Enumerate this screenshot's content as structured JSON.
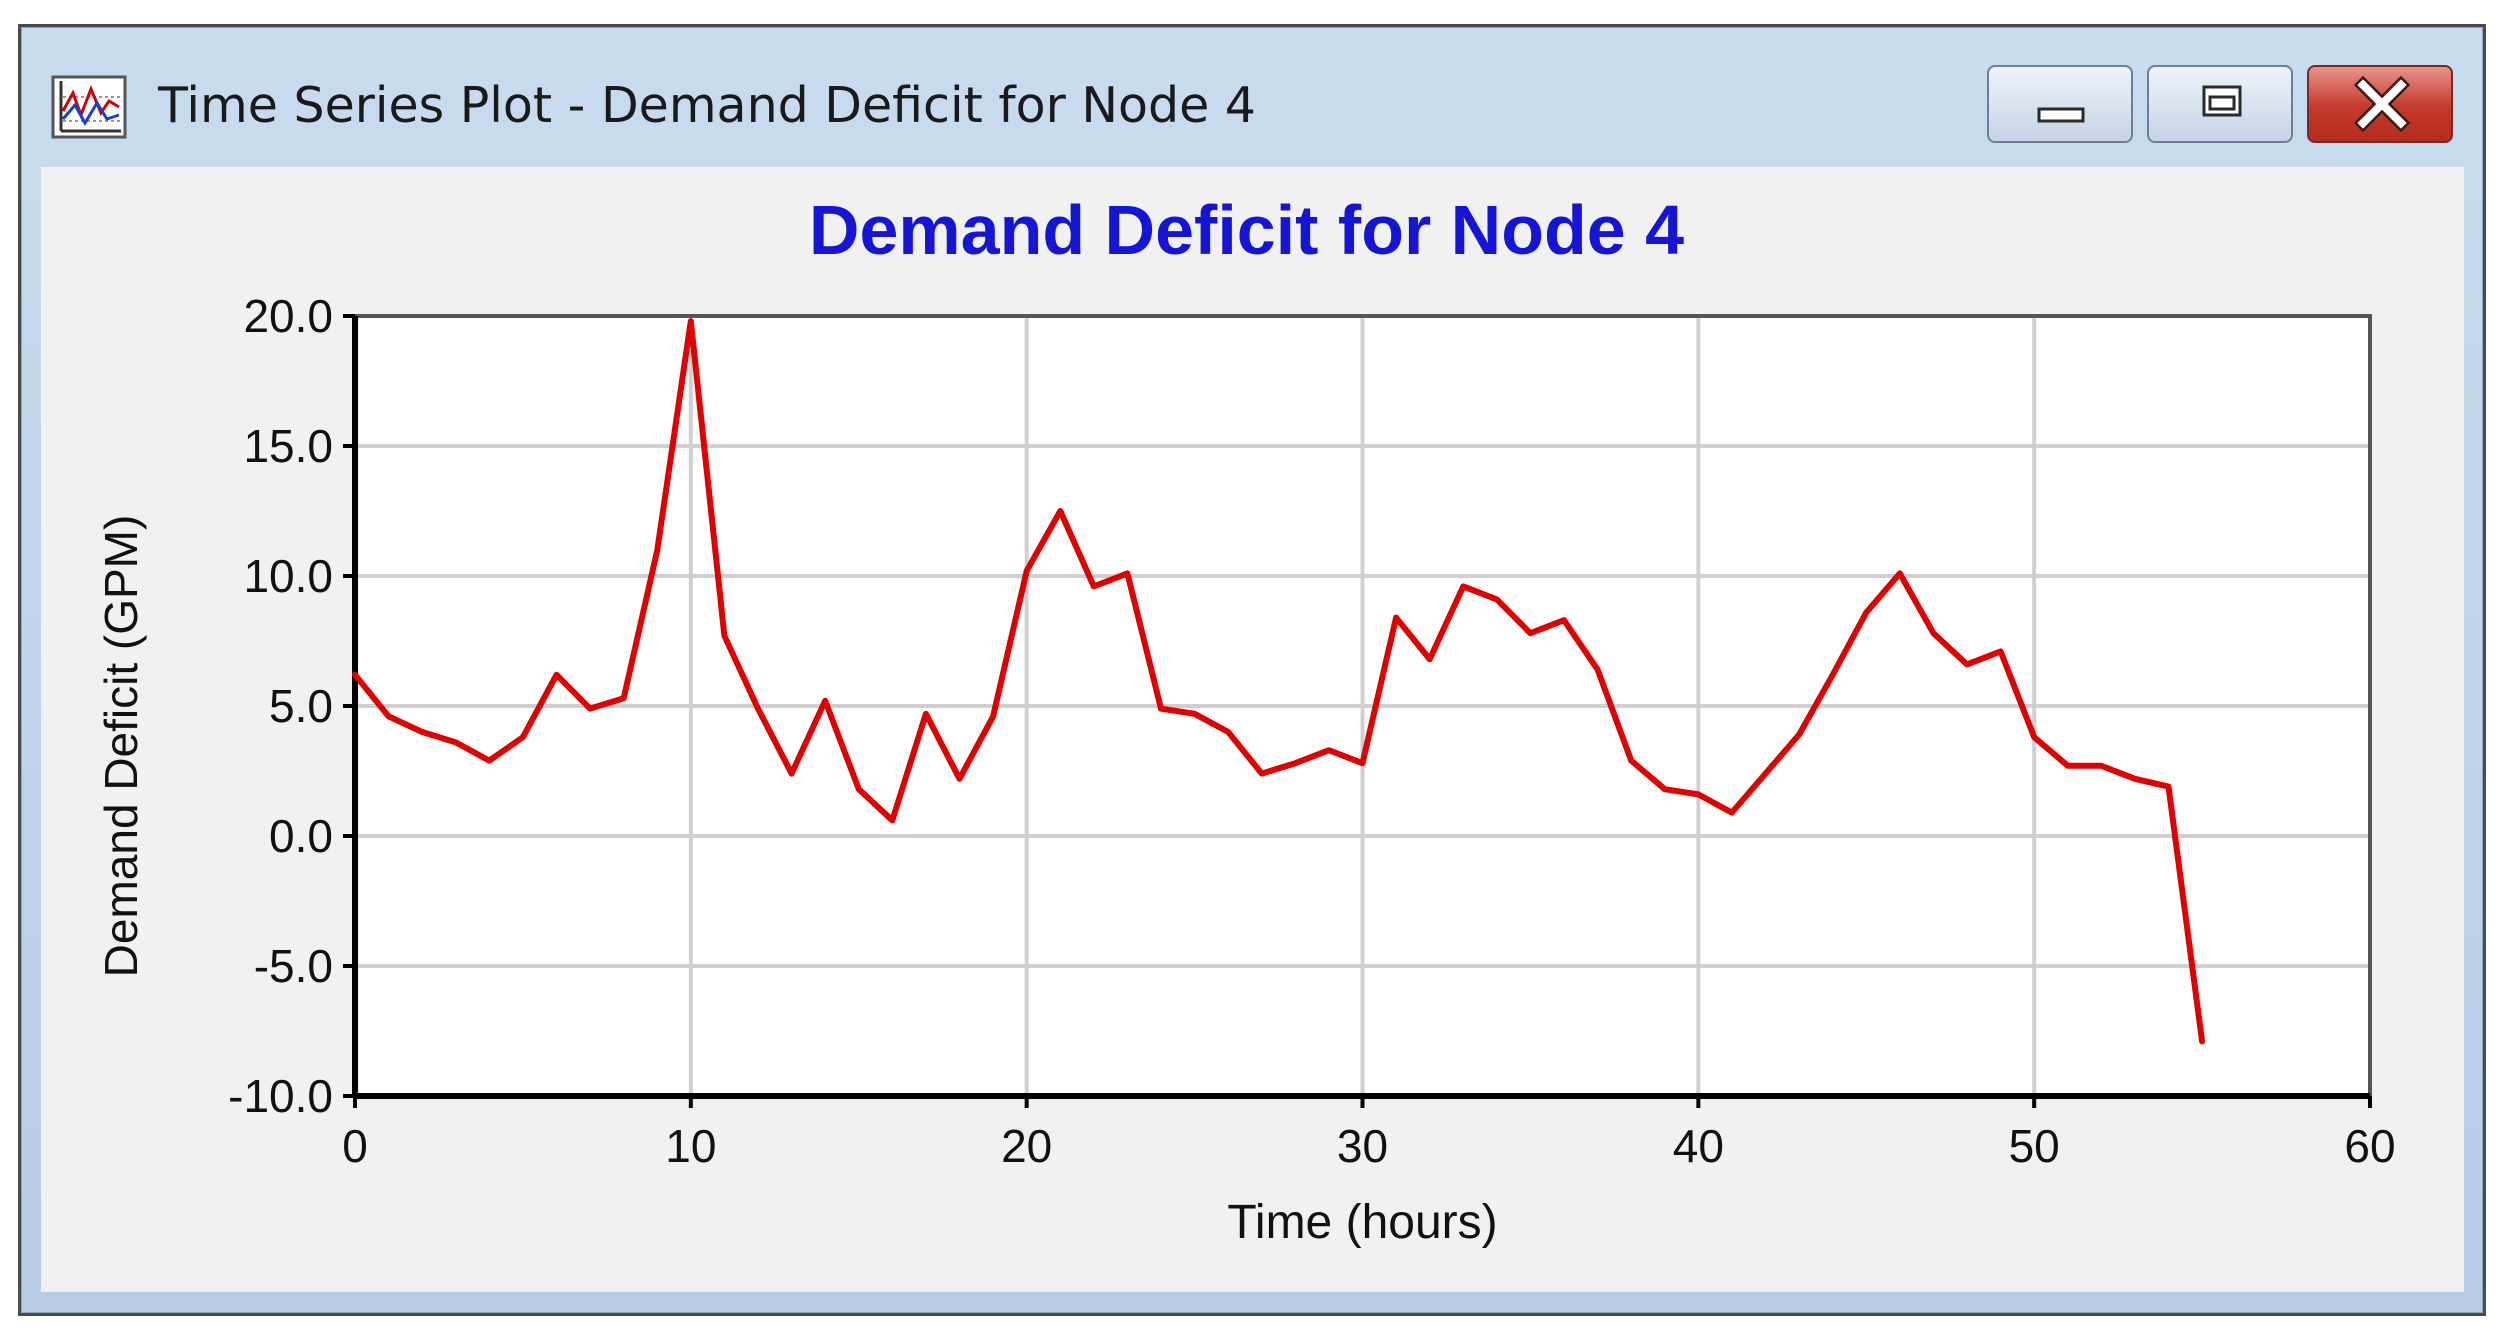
{
  "window": {
    "title": "Time Series Plot - Demand Deficit for Node 4",
    "icon": "time-series-plot-icon",
    "controls": {
      "minimize": "minimize-icon",
      "maximize": "maximize-icon",
      "close": "close-icon"
    }
  },
  "colors": {
    "title": "#1515d6",
    "line": "#e00000",
    "grid": "#d0d0d0",
    "close_button": "#c8392b"
  },
  "chart_data": {
    "type": "line",
    "title": "Demand Deficit for Node 4",
    "xlabel": "Time (hours)",
    "ylabel": "Demand Deficit (GPM)",
    "xlim": [
      0,
      60
    ],
    "ylim": [
      -10,
      20
    ],
    "grid": true,
    "x_ticks": [
      "0",
      "10",
      "20",
      "30",
      "40",
      "50",
      "60"
    ],
    "y_ticks": [
      "-10.0",
      "-5.0",
      "0.0",
      "5.0",
      "10.0",
      "15.0",
      "20.0"
    ],
    "series": [
      {
        "x": [
          0,
          1,
          2,
          3,
          4,
          5,
          6,
          7,
          8,
          9,
          10,
          11,
          12,
          13,
          14,
          15,
          16,
          17,
          18,
          19,
          20,
          21,
          22,
          23,
          24,
          25,
          26,
          27,
          28,
          29,
          30,
          31,
          32,
          33,
          34,
          35,
          36,
          37,
          38,
          39,
          40,
          41,
          42,
          43,
          44,
          45,
          46,
          47,
          48,
          49,
          50,
          51,
          52,
          53,
          54,
          55
        ],
        "y": [
          6.2,
          4.6,
          4.0,
          3.6,
          2.9,
          3.8,
          6.2,
          4.9,
          5.3,
          11.0,
          19.8,
          7.7,
          4.9,
          2.4,
          5.2,
          1.8,
          0.6,
          4.7,
          2.2,
          4.6,
          10.2,
          12.5,
          9.6,
          10.1,
          4.9,
          4.7,
          4.0,
          2.4,
          2.8,
          3.3,
          2.8,
          8.4,
          6.8,
          9.6,
          9.1,
          7.8,
          8.3,
          6.4,
          2.9,
          1.8,
          1.6,
          0.9,
          2.4,
          3.9,
          6.2,
          8.6,
          10.1,
          7.8,
          6.6,
          7.1,
          3.8,
          2.7,
          2.7,
          2.2,
          1.9,
          -7.9
        ]
      }
    ]
  }
}
